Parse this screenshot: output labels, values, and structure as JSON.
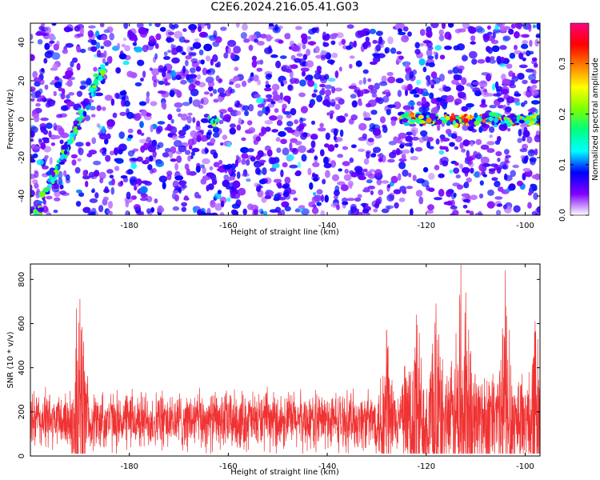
{
  "title": "C2E6.2024.216.05.41.G03",
  "colors": {
    "snr_line": "#f03232",
    "axis": "#000000",
    "spectrogram_palette": [
      "#ffffff",
      "#8000ff",
      "#0000ff",
      "#00ffff",
      "#00ff80",
      "#80ff00",
      "#ffff00",
      "#ff8000",
      "#ff0000",
      "#ff0080"
    ]
  },
  "chart_data": [
    {
      "type": "heatmap",
      "title": "C2E6.2024.216.05.41.G03",
      "xlabel": "Height of straight line (km)",
      "ylabel": "Frequency (Hz)",
      "xlim": [
        -200,
        -97
      ],
      "ylim": [
        -50,
        50
      ],
      "x_ticks": [
        -180,
        -160,
        -140,
        -120,
        -100
      ],
      "y_ticks": [
        -40,
        -20,
        0,
        20,
        40
      ],
      "colorbar": {
        "label": "Normalized spectral amplitude",
        "range": [
          0,
          0.38
        ],
        "ticks": [
          0.0,
          0.1,
          0.2,
          0.3
        ],
        "tick_labels": [
          "0.0",
          "0.1",
          "0.2",
          "0.3"
        ]
      },
      "features": [
        {
          "name": "diagonal streak",
          "x_from": -199,
          "x_to": -185,
          "y_from": -50,
          "y_to": 28,
          "peak_amplitude": 0.18
        },
        {
          "name": "zero-frequency band",
          "x_from": -125,
          "x_to": -97,
          "y_center": 0,
          "peak_amplitude": 0.3
        },
        {
          "name": "local blob",
          "x": -163,
          "y": -1,
          "peak_amplitude": 0.22
        }
      ]
    },
    {
      "type": "line",
      "xlabel": "Height of straight line (km)",
      "ylabel": "SNR (10 * v/v)",
      "xlim": [
        -200,
        -97
      ],
      "ylim": [
        0,
        870
      ],
      "x_ticks": [
        -180,
        -160,
        -140,
        -120,
        -100
      ],
      "y_ticks": [
        0,
        200,
        400,
        600,
        800
      ],
      "baseline": 160,
      "peaks": [
        {
          "x": -190,
          "y": 710
        },
        {
          "x": -128,
          "y": 570
        },
        {
          "x": -122,
          "y": 640
        },
        {
          "x": -118,
          "y": 690
        },
        {
          "x": -113,
          "y": 865
        },
        {
          "x": -112,
          "y": 740
        },
        {
          "x": -104,
          "y": 840
        },
        {
          "x": -98,
          "y": 610
        }
      ]
    }
  ]
}
